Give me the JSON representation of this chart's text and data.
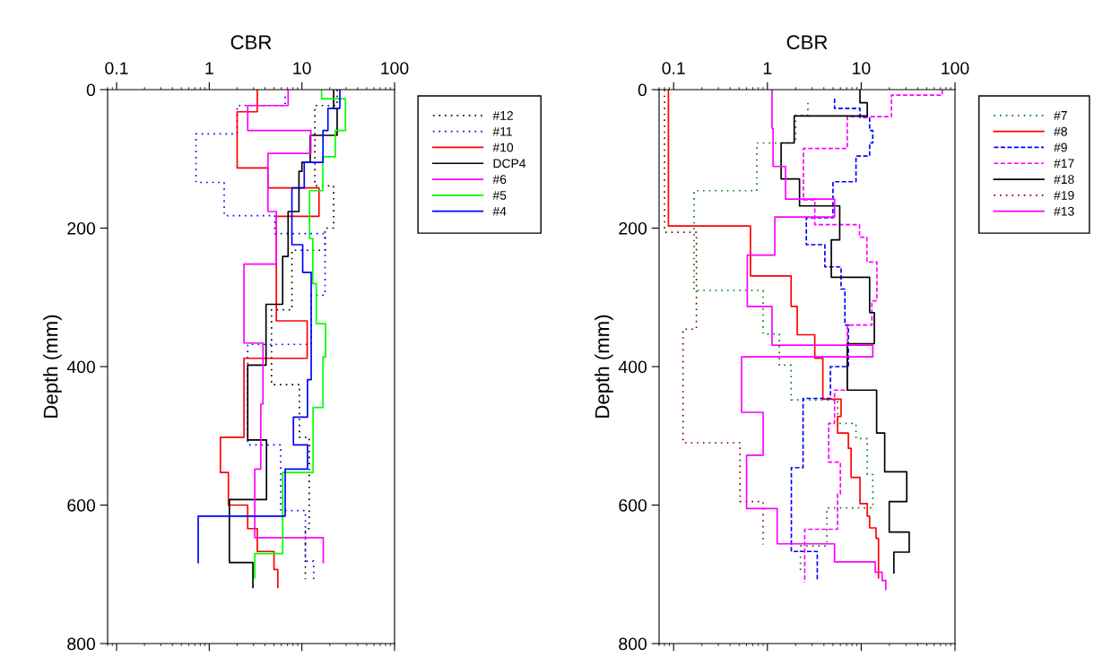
{
  "chart_data": [
    {
      "type": "line",
      "xlabel": "CBR",
      "ylabel": "Depth (mm)",
      "log": "x",
      "xlim": [
        0.08,
        100
      ],
      "xticks": [
        0.1,
        1,
        10,
        100
      ],
      "ylim": [
        800,
        0
      ],
      "yticks": [
        0,
        200,
        400,
        600,
        800
      ],
      "legend": "right",
      "series": [
        {
          "name": "#12",
          "color": "#000000",
          "line_style": "dotted",
          "x": [
            24,
            24,
            13.8,
            13.8,
            22,
            22,
            17.8,
            17.8,
            7.8,
            7.8,
            4.7,
            4.7,
            9.4,
            9.4,
            12,
            12,
            10.9,
            10.9
          ],
          "values": [
            0,
            23,
            23,
            139,
            139,
            200,
            200,
            232,
            232,
            318,
            318,
            426,
            426,
            502,
            502,
            634,
            634,
            707
          ]
        },
        {
          "name": "#11",
          "color": "#0000ff",
          "line_style": "dotted",
          "x": [
            6.6,
            6.6,
            2.0,
            2.0,
            0.72,
            0.72,
            1.45,
            1.45,
            5.1,
            5.1,
            17.8,
            17.8,
            12.6,
            12.6,
            2.6,
            2.6,
            5.9,
            5.9,
            10.9,
            10.9,
            13.4,
            13.4
          ],
          "values": [
            10,
            23,
            23,
            64,
            64,
            134,
            134,
            182,
            182,
            208,
            208,
            297,
            297,
            368,
            368,
            513,
            513,
            608,
            608,
            681,
            681,
            709
          ]
        },
        {
          "name": "#10",
          "color": "#ff0000",
          "line_style": "solid",
          "x": [
            3.3,
            3.3,
            2.0,
            2.0,
            4.3,
            4.3,
            15.3,
            15.3,
            5.3,
            5.3,
            11.4,
            11.4,
            2.37,
            2.37,
            1.32,
            1.32,
            1.61,
            1.61,
            2.6,
            2.6,
            3.3,
            3.3,
            5.0,
            5.0,
            5.5,
            5.5
          ],
          "values": [
            0,
            32,
            32,
            113,
            113,
            142,
            142,
            183,
            183,
            334,
            334,
            388,
            388,
            502,
            502,
            553,
            553,
            600,
            600,
            634,
            634,
            667,
            667,
            693,
            693,
            719
          ]
        },
        {
          "name": "DCP4",
          "color": "#000000",
          "line_style": "solid",
          "x": [
            22,
            22,
            24,
            24,
            12.3,
            12.3,
            10.0,
            10.0,
            9.3,
            9.3,
            7.1,
            7.1,
            6.2,
            6.2,
            4.1,
            4.1,
            2.6,
            2.6,
            4.15,
            4.15,
            1.65,
            1.65,
            2.96,
            2.96
          ],
          "values": [
            0,
            27,
            27,
            66,
            66,
            105,
            105,
            118,
            118,
            176,
            176,
            241,
            241,
            310,
            310,
            398,
            398,
            506,
            506,
            592,
            592,
            683,
            683,
            719
          ]
        },
        {
          "name": "#6",
          "color": "#ff00ff",
          "line_style": "solid",
          "x": [
            7.1,
            7.1,
            2.6,
            2.6,
            12.5,
            12.5,
            4.3,
            4.3,
            5.3,
            5.3,
            2.37,
            2.37,
            3.8,
            3.8,
            3.6,
            3.6,
            3.1,
            3.1,
            17,
            17
          ],
          "values": [
            0,
            23,
            23,
            59,
            59,
            92,
            92,
            176,
            176,
            252,
            252,
            366,
            366,
            454,
            454,
            548,
            548,
            647,
            647,
            683
          ]
        },
        {
          "name": "#5",
          "color": "#00ff00",
          "line_style": "solid",
          "x": [
            16.3,
            16.3,
            29.5,
            29.5,
            22.9,
            22.9,
            16.8,
            16.8,
            12.1,
            12.1,
            13.1,
            13.1,
            14.3,
            14.3,
            18,
            18,
            16.9,
            16.9,
            13.2,
            13.2,
            6.2,
            6.2,
            3.1,
            3.1
          ],
          "values": [
            0,
            13,
            13,
            59,
            59,
            97,
            97,
            146,
            146,
            215,
            215,
            280,
            280,
            338,
            338,
            386,
            386,
            459,
            459,
            553,
            553,
            670,
            670,
            705
          ]
        },
        {
          "name": "#4",
          "color": "#0000ff",
          "line_style": "solid",
          "x": [
            25.7,
            25.7,
            19.1,
            19.1,
            16.9,
            16.9,
            10.6,
            10.6,
            7.8,
            7.8,
            10.2,
            10.2,
            12.6,
            12.6,
            11.5,
            11.5,
            8.1,
            8.1,
            11.5,
            11.5,
            6.6,
            6.6,
            0.76,
            0.76
          ],
          "values": [
            0,
            27,
            27,
            59,
            59,
            105,
            105,
            142,
            142,
            224,
            224,
            264,
            264,
            419,
            419,
            473,
            473,
            513,
            513,
            548,
            548,
            616,
            616,
            683
          ]
        }
      ]
    },
    {
      "type": "line",
      "xlabel": "CBR",
      "ylabel": "Depth (mm)",
      "log": "x",
      "xlim": [
        0.07,
        100
      ],
      "xticks": [
        0.1,
        1,
        10,
        100
      ],
      "ylim": [
        800,
        0
      ],
      "yticks": [
        0,
        200,
        400,
        600,
        800
      ],
      "legend": "right",
      "series": [
        {
          "name": "#7",
          "color": "#008000",
          "line_style": "dotted",
          "x": [
            2.7,
            2.7,
            2.0,
            2.0,
            0.77,
            0.77,
            0.165,
            0.165,
            0.9,
            0.9,
            1.34,
            1.34,
            1.79,
            1.79,
            5.6,
            5.6,
            8.8,
            8.8,
            11.6,
            11.6,
            13.3,
            13.3,
            4.3,
            4.3,
            2.25,
            2.25
          ],
          "values": [
            19,
            37,
            37,
            77,
            77,
            146,
            146,
            290,
            290,
            353,
            353,
            398,
            398,
            448,
            448,
            482,
            482,
            504,
            504,
            556,
            556,
            604,
            604,
            659,
            659,
            698
          ]
        },
        {
          "name": "#8",
          "color": "#ff0000",
          "line_style": "solid",
          "x": [
            0.088,
            0.088,
            0.66,
            0.66,
            1.79,
            1.79,
            2.08,
            2.08,
            3.2,
            3.2,
            3.9,
            3.9,
            6.1,
            6.1,
            5.6,
            5.6,
            7.3,
            7.3,
            7.8,
            7.8,
            9.7,
            9.7,
            11.6,
            11.6,
            12.3,
            12.3,
            14.4,
            14.4,
            15.3,
            15.3
          ],
          "values": [
            0,
            197,
            197,
            269,
            269,
            313,
            313,
            354,
            354,
            388,
            388,
            447,
            447,
            472,
            472,
            496,
            496,
            518,
            518,
            560,
            560,
            598,
            598,
            616,
            616,
            633,
            633,
            648,
            648,
            705
          ]
        },
        {
          "name": "#9",
          "color": "#0000ff",
          "line_style": "dashed",
          "x": [
            5.2,
            5.2,
            9.7,
            9.7,
            12.3,
            12.3,
            13.3,
            13.3,
            12.3,
            12.3,
            8.8,
            8.8,
            5.0,
            5.0,
            2.6,
            2.6,
            4.1,
            4.1,
            6.1,
            6.1,
            6.7,
            6.7,
            7.3,
            7.3,
            4.7,
            4.7,
            2.4,
            2.4,
            1.8,
            1.8,
            3.4,
            3.4
          ],
          "values": [
            13,
            27,
            27,
            40,
            40,
            59,
            59,
            77,
            77,
            96,
            96,
            133,
            133,
            185,
            185,
            224,
            224,
            256,
            256,
            288,
            288,
            340,
            340,
            400,
            400,
            446,
            446,
            546,
            546,
            667,
            667,
            710
          ]
        },
        {
          "name": "#17",
          "color": "#ff00ff",
          "line_style": "dashed",
          "x": [
            73,
            73,
            21,
            21,
            7.1,
            7.1,
            2.42,
            2.42,
            3.2,
            3.2,
            9.6,
            9.6,
            11.5,
            11.5,
            14.7,
            14.7,
            13.0,
            13.0,
            7.1,
            7.1,
            5.2,
            5.2,
            4.5,
            4.5,
            6.0,
            6.0,
            5.6,
            5.6,
            2.5,
            2.5
          ],
          "values": [
            0,
            8,
            8,
            39,
            39,
            85,
            85,
            159,
            159,
            195,
            195,
            213,
            213,
            249,
            249,
            305,
            305,
            340,
            340,
            434,
            434,
            482,
            482,
            538,
            538,
            584,
            584,
            635,
            635,
            712
          ]
        },
        {
          "name": "#18",
          "color": "#000000",
          "line_style": "solid",
          "x": [
            9.7,
            9.7,
            11.6,
            11.6,
            1.93,
            1.93,
            1.4,
            1.4,
            2.2,
            2.2,
            5.9,
            5.9,
            4.8,
            4.8,
            12.3,
            12.3,
            13.8,
            13.8,
            7.1,
            7.1,
            14.6,
            14.6,
            17.8,
            17.8,
            30.6,
            30.6,
            19.9,
            19.9,
            32.5,
            32.5,
            22.3,
            22.3
          ],
          "values": [
            0,
            19,
            19,
            38,
            38,
            77,
            77,
            129,
            129,
            168,
            168,
            217,
            217,
            271,
            271,
            322,
            322,
            367,
            367,
            434,
            434,
            496,
            496,
            552,
            552,
            595,
            595,
            639,
            639,
            668,
            668,
            698
          ]
        },
        {
          "name": "#19",
          "color": "#800000",
          "line_style": "dotted",
          "x": [
            0.08,
            0.08,
            0.175,
            0.175,
            0.126,
            0.126,
            0.51,
            0.51,
            0.9,
            0.9
          ],
          "values": [
            0,
            206,
            206,
            346,
            346,
            510,
            510,
            595,
            595,
            657
          ]
        },
        {
          "name": "#13",
          "color": "#ff00ff",
          "line_style": "solid",
          "x": [
            1.12,
            1.12,
            1.15,
            1.15,
            1.56,
            1.56,
            5.2,
            5.2,
            1.2,
            1.2,
            0.61,
            0.61,
            1.12,
            1.12,
            13.3,
            13.3,
            0.53,
            0.53,
            0.9,
            0.9,
            0.6,
            0.6,
            1.27,
            1.27,
            5.2,
            5.2,
            14.1,
            14.1,
            16.7,
            16.7,
            18.3,
            18.3
          ],
          "values": [
            0,
            56,
            56,
            111,
            111,
            158,
            158,
            184,
            184,
            239,
            239,
            313,
            313,
            369,
            369,
            386,
            386,
            466,
            466,
            528,
            528,
            605,
            605,
            656,
            656,
            682,
            682,
            697,
            697,
            709,
            709,
            722
          ]
        }
      ]
    }
  ]
}
